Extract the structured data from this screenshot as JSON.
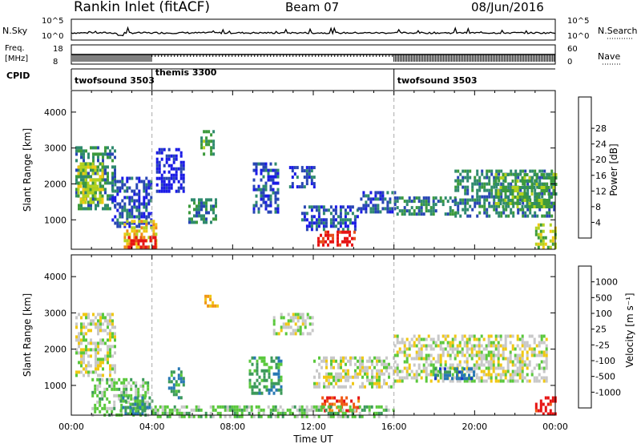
{
  "header": {
    "station": "Rankin Inlet (fitACF)",
    "beam": "Beam 07",
    "date": "08/Jun/2016"
  },
  "nsky": {
    "label": "N.Sky",
    "ticks": [
      "10^5",
      "10^0"
    ],
    "right_ticks": [
      "10^5",
      "10^0"
    ],
    "right_label": "N.Search"
  },
  "freq": {
    "label_line1": "Freq.",
    "label_line2": "[MHz]",
    "ticks": [
      "18",
      "8"
    ],
    "right_ticks": [
      "60",
      "0"
    ],
    "right_label": "Nave"
  },
  "cpid": {
    "label": "CPID",
    "segments": [
      {
        "name": "twofsound 3503",
        "start_hour": 0,
        "end_hour": 4
      },
      {
        "name": "themis 3300",
        "start_hour": 4,
        "end_hour": 16
      },
      {
        "name": "twofsound 3503",
        "start_hour": 16,
        "end_hour": 24
      }
    ]
  },
  "colors": {
    "power": [
      "#1a1ae6",
      "#2846b4",
      "#2f8a6e",
      "#3c9a3c",
      "#b4d21e",
      "#f0c814",
      "#f08c14",
      "#e6501e",
      "#e61414"
    ],
    "velocity": [
      "#e61414",
      "#f05a14",
      "#f09614",
      "#f0c814",
      "#c8c8c8",
      "#5ac83c",
      "#3c9a5a",
      "#2878b4",
      "#1a3cc8"
    ]
  },
  "chart_data": [
    {
      "type": "heatmap",
      "name": "power",
      "ylabel": "Slant Range [km]",
      "xlabel": "Time UT",
      "x_range_hours": [
        0,
        24
      ],
      "ylim": [
        180,
        4600
      ],
      "y_ticks": [
        1000,
        2000,
        3000,
        4000
      ],
      "x_ticks": [
        "00:00",
        "04:00",
        "08:00",
        "12:00",
        "16:00",
        "20:00",
        "00:00"
      ],
      "colorbar": {
        "label": "Power [dB]",
        "ticks": [
          "4",
          "8",
          "12",
          "16",
          "20",
          "24",
          "28"
        ]
      },
      "regions": [
        {
          "t0": 0.2,
          "t1": 2.2,
          "r0": 1300,
          "r1": 3050,
          "level": 2
        },
        {
          "t0": 0.3,
          "t1": 1.6,
          "r0": 1500,
          "r1": 2600,
          "level": 4
        },
        {
          "t0": 2.0,
          "t1": 4.0,
          "r0": 800,
          "r1": 2200,
          "level": 1
        },
        {
          "t0": 2.6,
          "t1": 4.2,
          "r0": 250,
          "r1": 1000,
          "level": 5
        },
        {
          "t0": 2.8,
          "t1": 4.2,
          "r0": 250,
          "r1": 550,
          "level": 8
        },
        {
          "t0": 4.2,
          "t1": 5.6,
          "r0": 1800,
          "r1": 3000,
          "level": 0
        },
        {
          "t0": 6.4,
          "t1": 7.1,
          "r0": 2800,
          "r1": 3500,
          "level": 3
        },
        {
          "t0": 5.8,
          "t1": 7.2,
          "r0": 900,
          "r1": 1600,
          "level": 2
        },
        {
          "t0": 9.0,
          "t1": 10.2,
          "r0": 1200,
          "r1": 2600,
          "level": 1
        },
        {
          "t0": 10.8,
          "t1": 12.0,
          "r0": 1900,
          "r1": 2500,
          "level": 1
        },
        {
          "t0": 11.4,
          "t1": 14.2,
          "r0": 700,
          "r1": 1400,
          "level": 1
        },
        {
          "t0": 12.2,
          "t1": 14.1,
          "r0": 300,
          "r1": 700,
          "level": 8
        },
        {
          "t0": 14.2,
          "t1": 16.0,
          "r0": 1250,
          "r1": 1800,
          "level": 1
        },
        {
          "t0": 16.0,
          "t1": 19.0,
          "r0": 1200,
          "r1": 1650,
          "level": 2
        },
        {
          "t0": 19.0,
          "t1": 24.0,
          "r0": 1100,
          "r1": 2400,
          "level": 2
        },
        {
          "t0": 21.0,
          "t1": 24.0,
          "r0": 1400,
          "r1": 2300,
          "level": 3
        },
        {
          "t0": 23.0,
          "t1": 24.0,
          "r0": 250,
          "r1": 900,
          "level": 4
        }
      ]
    },
    {
      "type": "heatmap",
      "name": "velocity",
      "ylabel": "Slant Range [km]",
      "xlabel": "Time UT",
      "x_range_hours": [
        0,
        24
      ],
      "ylim": [
        180,
        4600
      ],
      "y_ticks": [
        1000,
        2000,
        3000,
        4000
      ],
      "x_ticks": [
        "00:00",
        "04:00",
        "08:00",
        "12:00",
        "16:00",
        "20:00",
        "00:00"
      ],
      "colorbar": {
        "label": "Velocity [m s⁻¹]",
        "ticks": [
          "1000",
          "500",
          "100",
          "25",
          "-25",
          "-100",
          "-500",
          "-1000"
        ]
      },
      "regions": [
        {
          "t0": 0.2,
          "t1": 2.2,
          "r0": 1300,
          "r1": 3000,
          "level": 4
        },
        {
          "t0": 1.0,
          "t1": 3.8,
          "r0": 200,
          "r1": 1200,
          "level": 5
        },
        {
          "t0": 2.4,
          "t1": 4.0,
          "r0": 200,
          "r1": 700,
          "level": 6
        },
        {
          "t0": 4.8,
          "t1": 5.6,
          "r0": 700,
          "r1": 1500,
          "level": 6
        },
        {
          "t0": 6.6,
          "t1": 7.2,
          "r0": 3200,
          "r1": 3500,
          "level": 2
        },
        {
          "t0": 8.8,
          "t1": 10.4,
          "r0": 800,
          "r1": 1800,
          "level": 6
        },
        {
          "t0": 10.0,
          "t1": 12.0,
          "r0": 2400,
          "r1": 3000,
          "level": 4
        },
        {
          "t0": 12.4,
          "t1": 14.2,
          "r0": 300,
          "r1": 700,
          "level": 1
        },
        {
          "t0": 12.0,
          "t1": 16.0,
          "r0": 1000,
          "r1": 1800,
          "level": 4
        },
        {
          "t0": 16.0,
          "t1": 23.6,
          "r0": 1100,
          "r1": 2400,
          "level": 4
        },
        {
          "t0": 18.0,
          "t1": 20.0,
          "r0": 1200,
          "r1": 1500,
          "level": 7
        },
        {
          "t0": 4.0,
          "t1": 16.0,
          "r0": 180,
          "r1": 450,
          "level": 5
        },
        {
          "t0": 23.0,
          "t1": 24.0,
          "r0": 200,
          "r1": 700,
          "level": 0
        }
      ]
    }
  ]
}
